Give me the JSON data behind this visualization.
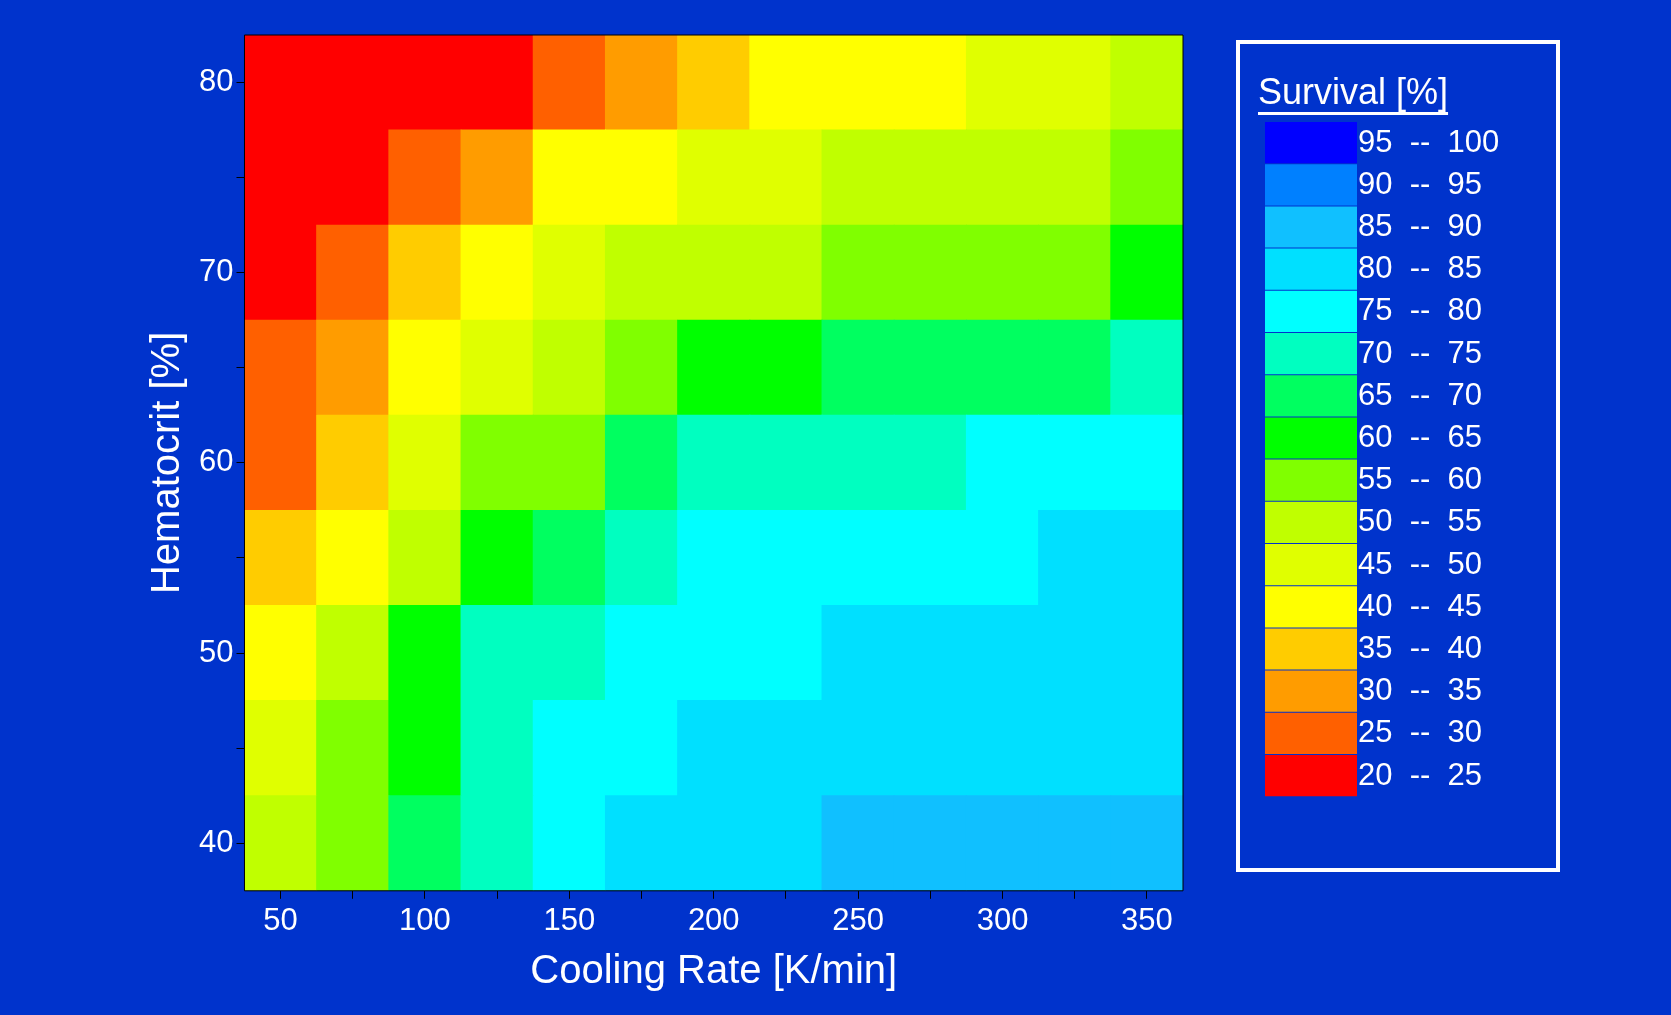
{
  "chart_data": {
    "type": "heatmap",
    "xlabel": "Cooling Rate [K/min]",
    "ylabel": "Hematocrit [%]",
    "clabel": "Survival [%]",
    "categories": [
      "50",
      null,
      "100",
      null,
      "150",
      null,
      "200",
      null,
      "250",
      null,
      "300",
      null,
      "350"
    ],
    "y_categories": [
      "80",
      null,
      "70",
      null,
      "60",
      null,
      "50",
      null,
      "40"
    ],
    "cells": [
      [
        21,
        22,
        23,
        24,
        28,
        33,
        38,
        41,
        42,
        44,
        45,
        48,
        51
      ],
      [
        22,
        24,
        27,
        34,
        40,
        43,
        46,
        48,
        50,
        51,
        52,
        54,
        56
      ],
      [
        23,
        28,
        36,
        42,
        46,
        50,
        52,
        54,
        56,
        57,
        58,
        59,
        62
      ],
      [
        25,
        31,
        40,
        47,
        52,
        56,
        61,
        63,
        65,
        66,
        67,
        68,
        70
      ],
      [
        28,
        36,
        47,
        57,
        59,
        66,
        71,
        72,
        73,
        74,
        75,
        76,
        77
      ],
      [
        37,
        44,
        54,
        62,
        67,
        71,
        76,
        77,
        78,
        79,
        79,
        80,
        81
      ],
      [
        44,
        52,
        62,
        70,
        73,
        76,
        78,
        79,
        80,
        81,
        82,
        82,
        83
      ],
      [
        49,
        55,
        64,
        71,
        75,
        79,
        80,
        81,
        82,
        83,
        83,
        84,
        84
      ],
      [
        53,
        58,
        66,
        72,
        77,
        81,
        82,
        83,
        86,
        86,
        86,
        86,
        86
      ]
    ],
    "clim": [
      20,
      100
    ],
    "colors": [
      "#ff0000",
      "#ff6000",
      "#ff9c00",
      "#ffcc00",
      "#ffff00",
      "#e0ff00",
      "#c0ff00",
      "#80ff00",
      "#00ff00",
      "#00ff60",
      "#00ffc0",
      "#00ffff",
      "#00e0ff",
      "#10c0ff",
      "#0080ff",
      "#0000ff"
    ],
    "cticks": [
      {
        "value": 22.5,
        "label": "20  --  25"
      },
      {
        "value": 27.5,
        "label": "25  --  30"
      },
      {
        "value": 32.5,
        "label": "30  --  35"
      },
      {
        "value": 37.5,
        "label": "35  --  40"
      },
      {
        "value": 42.5,
        "label": "40  --  45"
      },
      {
        "value": 47.5,
        "label": "45  --  50"
      },
      {
        "value": 52.5,
        "label": "50  --  55"
      },
      {
        "value": 57.5,
        "label": "55  --  60"
      },
      {
        "value": 62.5,
        "label": "60  --  65"
      },
      {
        "value": 67.5,
        "label": "65  --  70"
      },
      {
        "value": 72.5,
        "label": "70  --  75"
      },
      {
        "value": 77.5,
        "label": "75  --  80"
      },
      {
        "value": 82.5,
        "label": "80  --  85"
      },
      {
        "value": 87.5,
        "label": "85  --  90"
      },
      {
        "value": 92.5,
        "label": "90  --  95"
      },
      {
        "value": 97.5,
        "label": "95  --  100"
      }
    ]
  }
}
